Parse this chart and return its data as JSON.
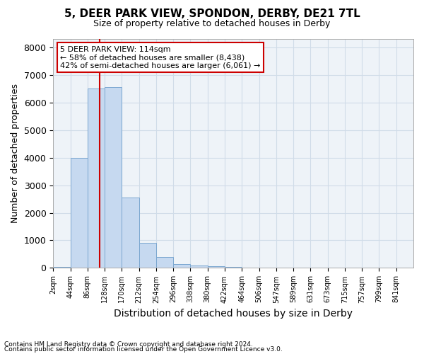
{
  "title": "5, DEER PARK VIEW, SPONDON, DERBY, DE21 7TL",
  "subtitle": "Size of property relative to detached houses in Derby",
  "xlabel": "Distribution of detached houses by size in Derby",
  "ylabel": "Number of detached properties",
  "footer_line1": "Contains HM Land Registry data © Crown copyright and database right 2024.",
  "footer_line2": "Contains public sector information licensed under the Open Government Licence v3.0.",
  "bin_labels": [
    "2sqm",
    "44sqm",
    "86sqm",
    "128sqm",
    "170sqm",
    "212sqm",
    "254sqm",
    "296sqm",
    "338sqm",
    "380sqm",
    "422sqm",
    "464sqm",
    "506sqm",
    "547sqm",
    "589sqm",
    "631sqm",
    "673sqm",
    "715sqm",
    "757sqm",
    "799sqm",
    "841sqm"
  ],
  "bar_values": [
    25,
    4000,
    6500,
    6550,
    2550,
    900,
    400,
    150,
    100,
    55,
    30,
    10,
    5,
    2,
    1,
    0,
    0,
    0,
    0,
    0,
    0
  ],
  "bar_color": "#c6d9f0",
  "bar_edge_color": "#7ba7d0",
  "ylim": [
    0,
    8300
  ],
  "yticks": [
    0,
    1000,
    2000,
    3000,
    4000,
    5000,
    6000,
    7000,
    8000
  ],
  "property_line_x": 2.72,
  "property_line_color": "#cc0000",
  "annotation_text": "5 DEER PARK VIEW: 114sqm\n← 58% of detached houses are smaller (8,438)\n42% of semi-detached houses are larger (6,061) →",
  "annotation_box_color": "#cc0000",
  "grid_color": "#d0dce8",
  "background_color": "#eef3f8"
}
